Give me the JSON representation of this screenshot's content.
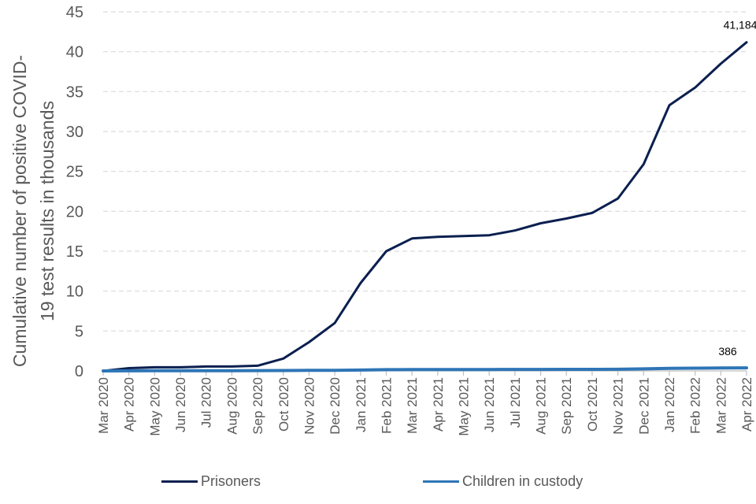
{
  "chart_data": {
    "type": "line",
    "title": "",
    "xlabel": "",
    "ylabel_lines": [
      "Cumulative number of positive  COVID-",
      "19 test results in thousands"
    ],
    "ylim": [
      0,
      45
    ],
    "yticks": [
      0,
      5,
      10,
      15,
      20,
      25,
      30,
      35,
      40,
      45
    ],
    "grid": true,
    "legend_position": "bottom",
    "categories": [
      "Mar 2020",
      "Apr 2020",
      "May 2020",
      "Jun 2020",
      "Jul 2020",
      "Aug 2020",
      "Sep 2020",
      "Oct 2020",
      "Nov 2020",
      "Dec 2020",
      "Jan 2021",
      "Feb 2021",
      "Mar 2021",
      "Apr 2021",
      "May 2021",
      "Jun 2021",
      "Jul 2021",
      "Aug 2021",
      "Sep 2021",
      "Oct 2021",
      "Nov 2021",
      "Dec 2021",
      "Jan 2022",
      "Feb 2022",
      "Mar 2022",
      "Apr 2022"
    ],
    "series": [
      {
        "name": "Prisoners",
        "color": "#0b1f4f",
        "values": [
          0,
          0.35,
          0.45,
          0.45,
          0.55,
          0.55,
          0.65,
          1.55,
          3.6,
          6.0,
          11.0,
          15.0,
          16.6,
          16.8,
          16.9,
          17.0,
          17.6,
          18.5,
          19.1,
          19.8,
          21.6,
          25.9,
          33.3,
          35.5,
          38.5,
          41.184
        ],
        "end_label": "41,184"
      },
      {
        "name": "Children in custody",
        "color": "#2e75b6",
        "values": [
          0,
          0.01,
          0.02,
          0.02,
          0.03,
          0.03,
          0.04,
          0.05,
          0.07,
          0.08,
          0.11,
          0.16,
          0.17,
          0.17,
          0.18,
          0.18,
          0.19,
          0.19,
          0.2,
          0.2,
          0.21,
          0.26,
          0.33,
          0.35,
          0.37,
          0.386
        ],
        "end_label": "386"
      }
    ]
  }
}
